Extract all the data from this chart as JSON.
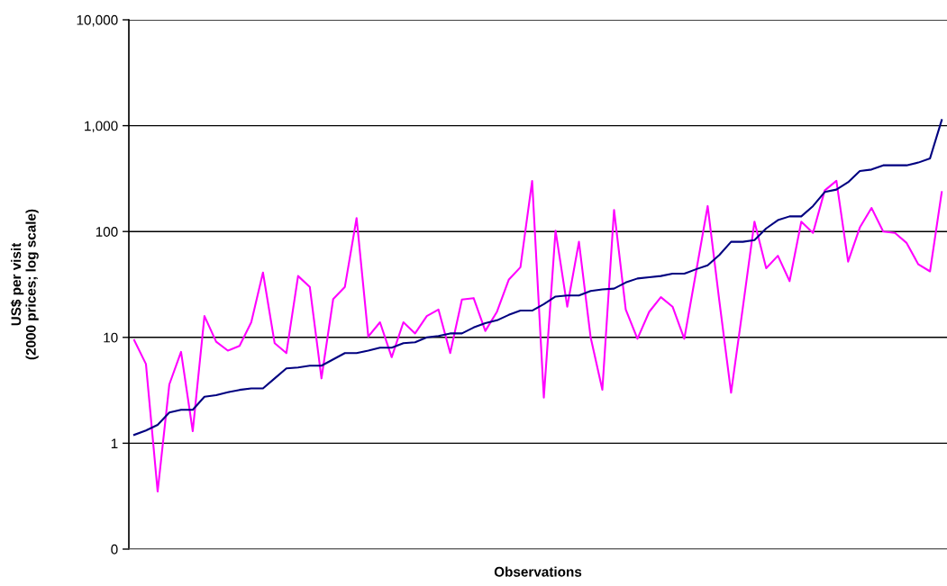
{
  "chart_data": {
    "type": "line",
    "xlabel": "Observations",
    "ylabel": "US$ per visit\n(2000 prices; log scale)",
    "categories": [
      null,
      null,
      null,
      null,
      null,
      null,
      null,
      null,
      null,
      null,
      null,
      null,
      null,
      null,
      null,
      null,
      null,
      null,
      null,
      null,
      null,
      null,
      null,
      null,
      null,
      null,
      null,
      null,
      null,
      null,
      null,
      null,
      null,
      null,
      null,
      null,
      null,
      null,
      null,
      null,
      null,
      null,
      null,
      null,
      null,
      null,
      null,
      null,
      null,
      null,
      null,
      null,
      null,
      null,
      null,
      null,
      null,
      null,
      null,
      null,
      null,
      null,
      null,
      null,
      null,
      null,
      null,
      null,
      null,
      null
    ],
    "series": [
      {
        "color": "#ff00ff",
        "values": [
          9.4,
          5.6,
          0.35,
          3.6,
          7.3,
          1.3,
          15.9,
          9.1,
          7.5,
          8.3,
          13.9,
          41,
          8.8,
          7.1,
          38,
          30,
          4.1,
          23,
          30,
          134,
          10.2,
          13.9,
          6.5,
          13.9,
          10.9,
          15.9,
          18.3,
          7.1,
          22.8,
          23.5,
          11.5,
          17.5,
          35,
          46,
          300,
          2.7,
          102,
          19.5,
          80,
          10,
          3.2,
          160,
          18.3,
          9.7,
          17.4,
          24,
          19.5,
          9.7,
          41,
          174,
          22,
          3.0,
          19,
          124,
          45,
          59,
          34,
          124,
          97,
          244,
          301,
          52,
          109,
          167,
          100,
          97,
          78,
          49,
          42,
          236
        ]
      },
      {
        "color": "#000080",
        "values": [
          1.2,
          1.32,
          1.49,
          1.95,
          2.07,
          2.07,
          2.75,
          2.84,
          3.03,
          3.19,
          3.3,
          3.3,
          4.1,
          5.1,
          5.2,
          5.4,
          5.4,
          6.2,
          7.1,
          7.1,
          7.5,
          8.0,
          8.0,
          8.8,
          9.0,
          10.0,
          10.3,
          10.9,
          10.9,
          12.4,
          13.6,
          14.5,
          16.3,
          17.9,
          17.9,
          20.6,
          24.3,
          24.9,
          24.9,
          27.4,
          28.4,
          28.9,
          33,
          36,
          37,
          38,
          40,
          40,
          44,
          48,
          60,
          80,
          80,
          83,
          107,
          128,
          139,
          139,
          174,
          236,
          249,
          292,
          373,
          385,
          422,
          422,
          422,
          448,
          491,
          1130
        ]
      }
    ],
    "log": "y",
    "ylim": [
      0.1,
      10000
    ],
    "yticks": [
      {
        "value": 0.1,
        "label": "0"
      },
      1,
      10,
      100,
      {
        "value": 1000,
        "label": "1,000"
      },
      {
        "value": 10000,
        "label": "10,000"
      }
    ],
    "grid": "y",
    "tick_labels": "y"
  }
}
